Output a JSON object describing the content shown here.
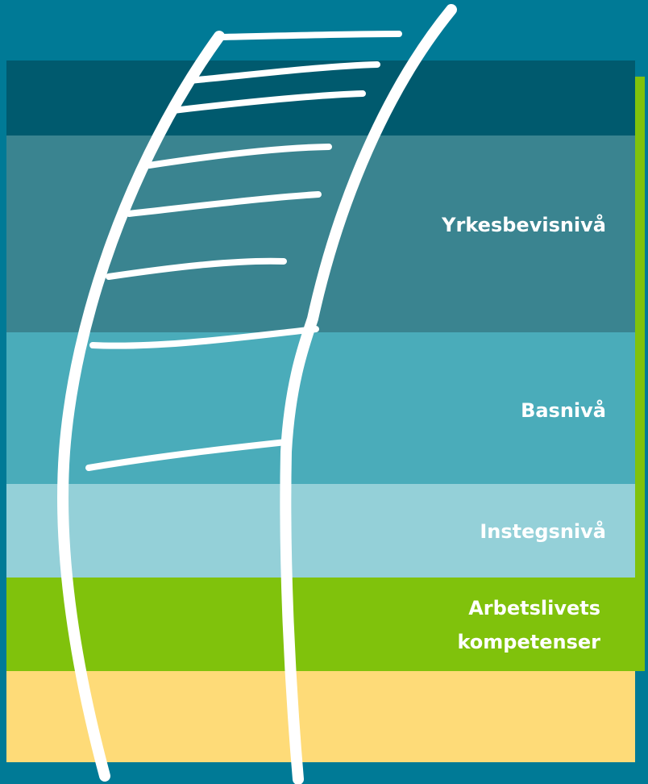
{
  "levels": [
    {
      "label": "Yrkesbevisnivå"
    },
    {
      "label": "Basnivå"
    },
    {
      "label": "Instegsnivå"
    },
    {
      "lines": [
        "Arbetslivets",
        "kompetenser"
      ]
    }
  ]
}
